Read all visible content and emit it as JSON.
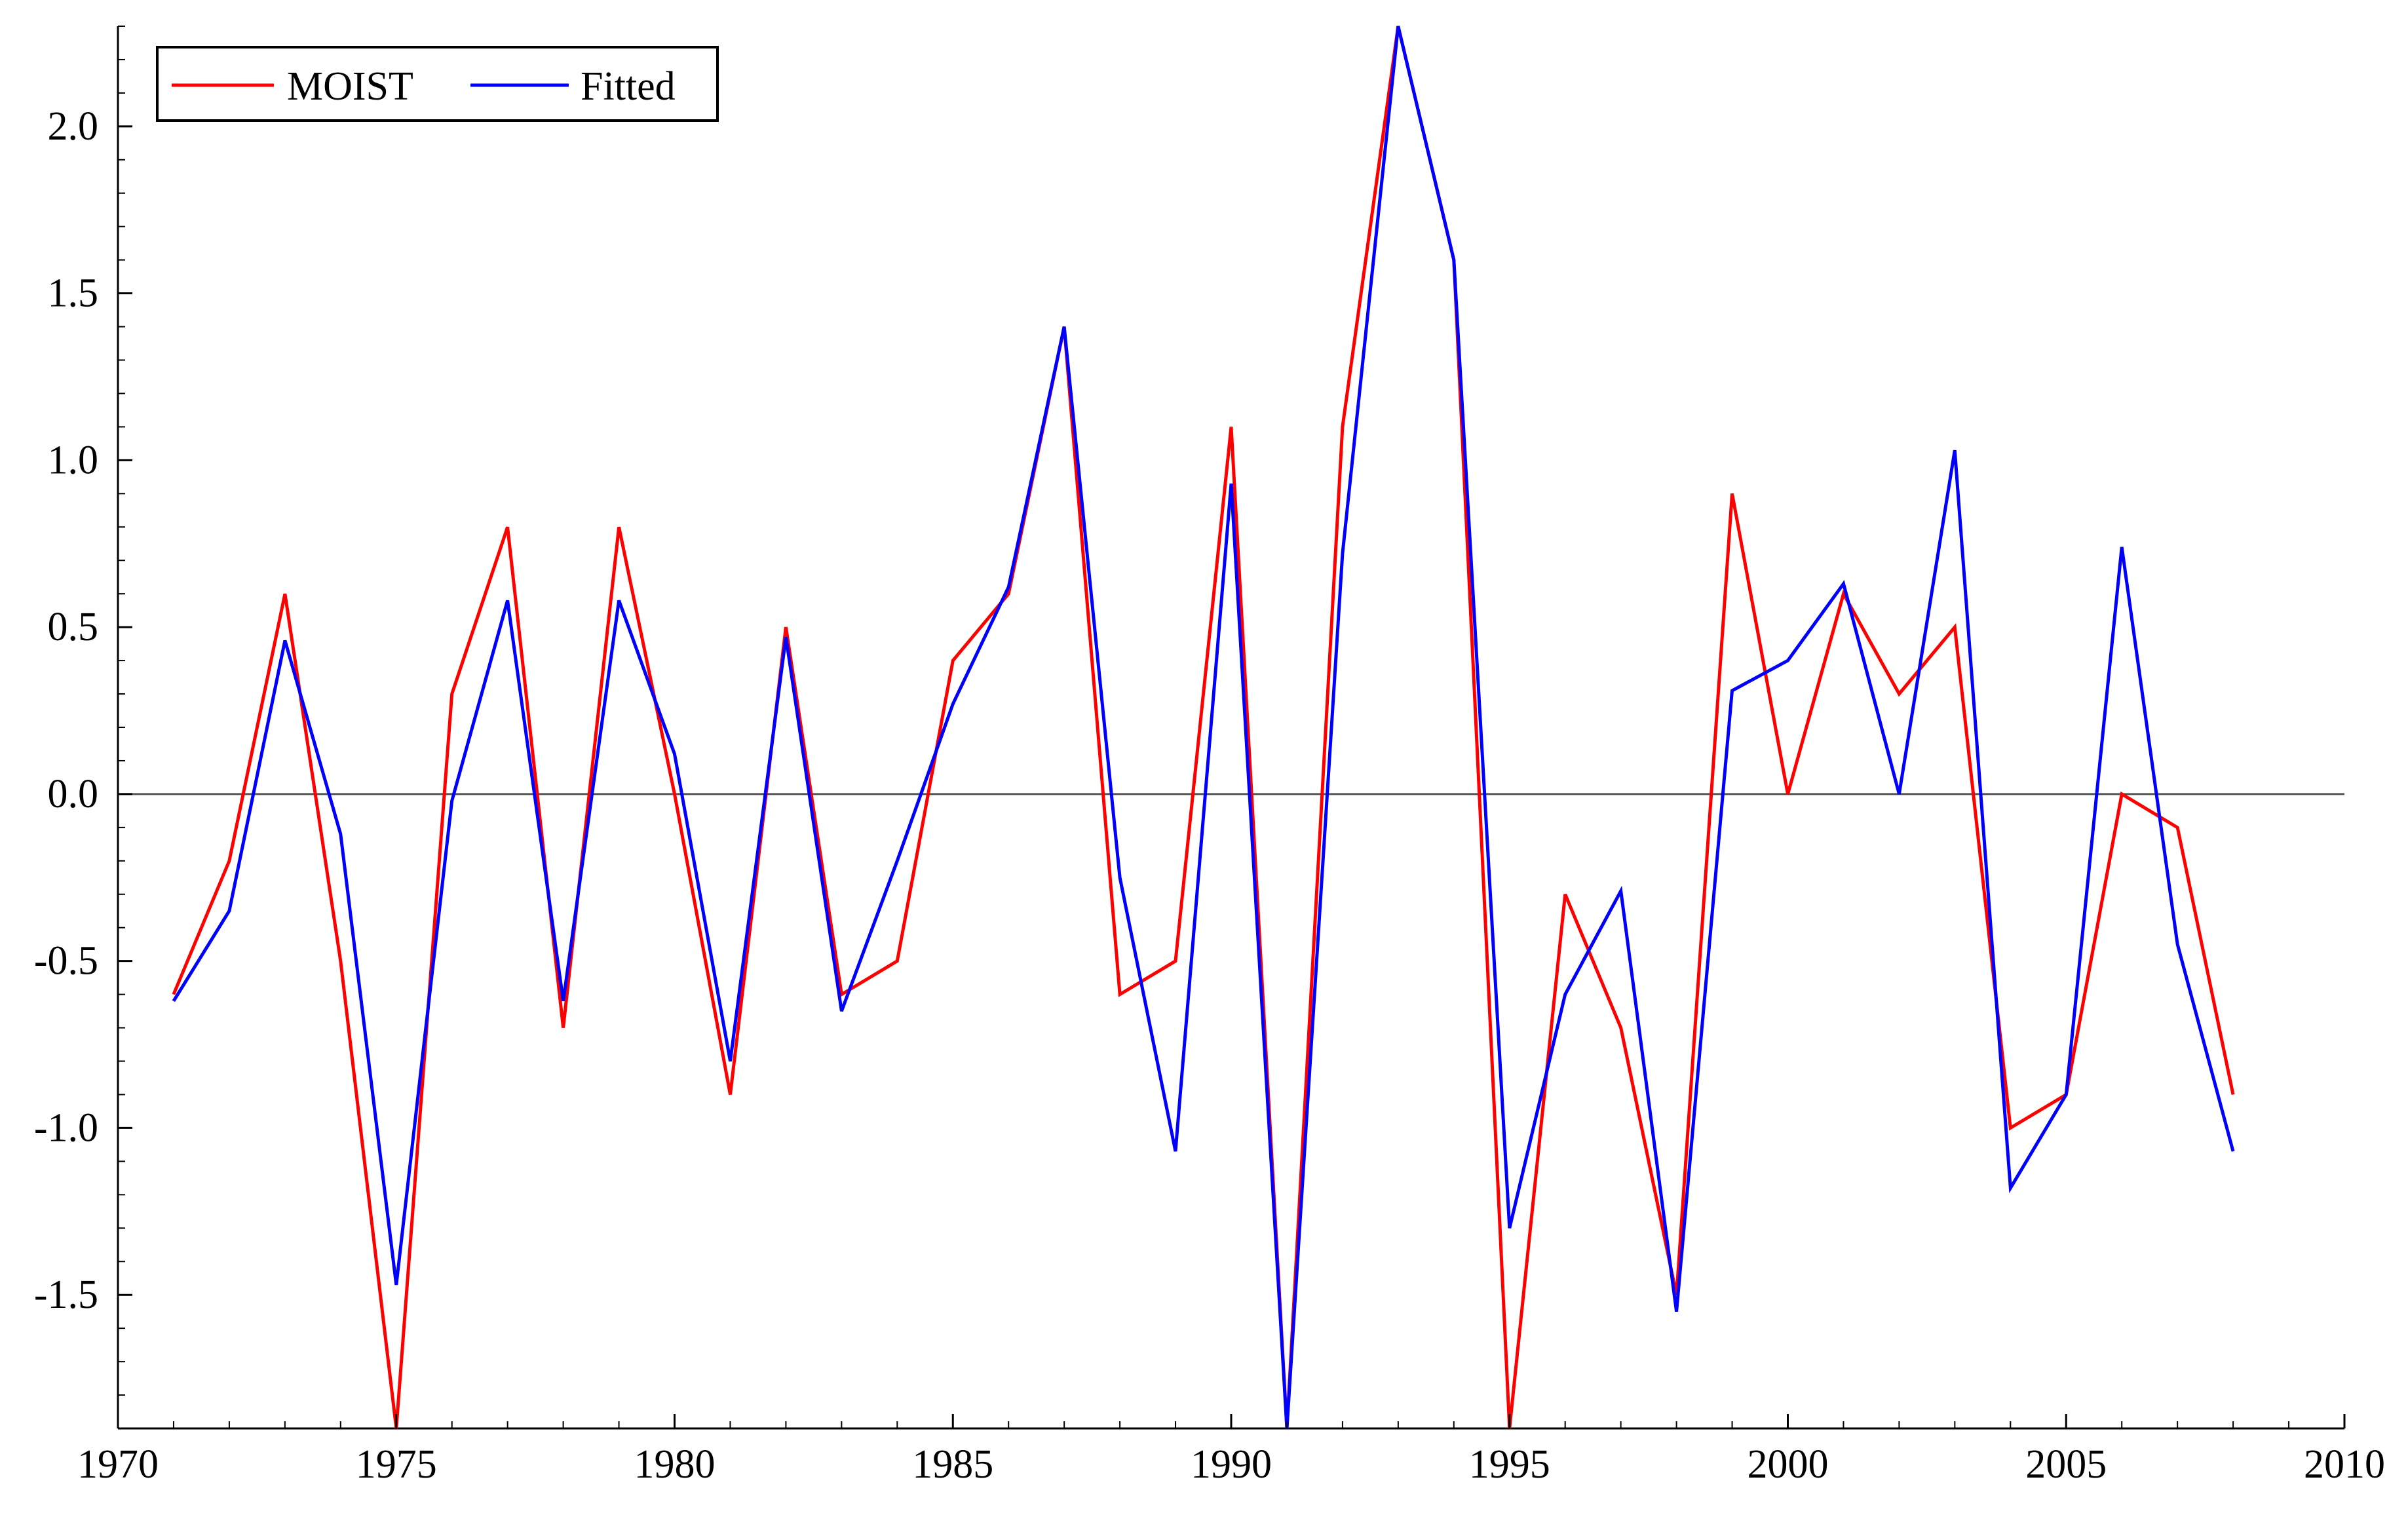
{
  "chart_data": {
    "type": "line",
    "title": "",
    "xlabel": "",
    "ylabel": "",
    "xlim": [
      1970,
      2010
    ],
    "ylim": [
      -1.9,
      2.3
    ],
    "x_ticks": [
      1970,
      1975,
      1980,
      1985,
      1990,
      1995,
      2000,
      2005,
      2010
    ],
    "x_tick_labels": [
      "1970",
      "1975",
      "1980",
      "1985",
      "1990",
      "1995",
      "2000",
      "2005",
      "2010"
    ],
    "y_ticks": [
      -1.5,
      -1.0,
      -0.5,
      0.0,
      0.5,
      1.0,
      1.5,
      2.0
    ],
    "y_tick_labels": [
      "-1.5",
      "-1.0",
      "-0.5",
      "0.0",
      "0.5",
      "1.0",
      "1.5",
      "2.0"
    ],
    "zero_line": true,
    "grid": false,
    "legend_position": "top-left",
    "x": [
      1971,
      1972,
      1973,
      1974,
      1975,
      1976,
      1977,
      1978,
      1979,
      1980,
      1981,
      1982,
      1983,
      1984,
      1985,
      1986,
      1987,
      1988,
      1989,
      1990,
      1991,
      1992,
      1993,
      1994,
      1995,
      1996,
      1997,
      1998,
      1999,
      2000,
      2001,
      2002,
      2003,
      2004,
      2005,
      2006,
      2007,
      2008
    ],
    "series": [
      {
        "name": "MOIST",
        "color": "#ff0000",
        "values": [
          -0.6,
          -0.2,
          0.6,
          -0.5,
          -1.9,
          0.3,
          0.8,
          -0.7,
          0.8,
          0.0,
          -0.9,
          0.5,
          -0.6,
          -0.5,
          0.4,
          0.6,
          1.4,
          -0.6,
          -0.5,
          1.1,
          -1.9,
          1.1,
          2.3,
          1.6,
          -1.9,
          -0.3,
          -0.7,
          -1.5,
          0.9,
          0.0,
          0.6,
          0.3,
          0.5,
          -1.0,
          -0.9,
          0.0,
          -0.1,
          -0.9
        ]
      },
      {
        "name": "Fitted",
        "color": "#0000ff",
        "values": [
          -0.62,
          -0.35,
          0.46,
          -0.12,
          -1.47,
          -0.02,
          0.58,
          -0.62,
          0.58,
          0.12,
          -0.8,
          0.47,
          -0.65,
          -0.2,
          0.27,
          0.62,
          1.4,
          -0.25,
          -1.07,
          0.93,
          -1.9,
          0.72,
          2.3,
          1.6,
          -1.3,
          -0.6,
          -0.29,
          -1.55,
          0.31,
          0.4,
          0.63,
          0.0,
          1.03,
          -1.18,
          -0.9,
          0.74,
          -0.45,
          -1.07
        ]
      }
    ]
  }
}
